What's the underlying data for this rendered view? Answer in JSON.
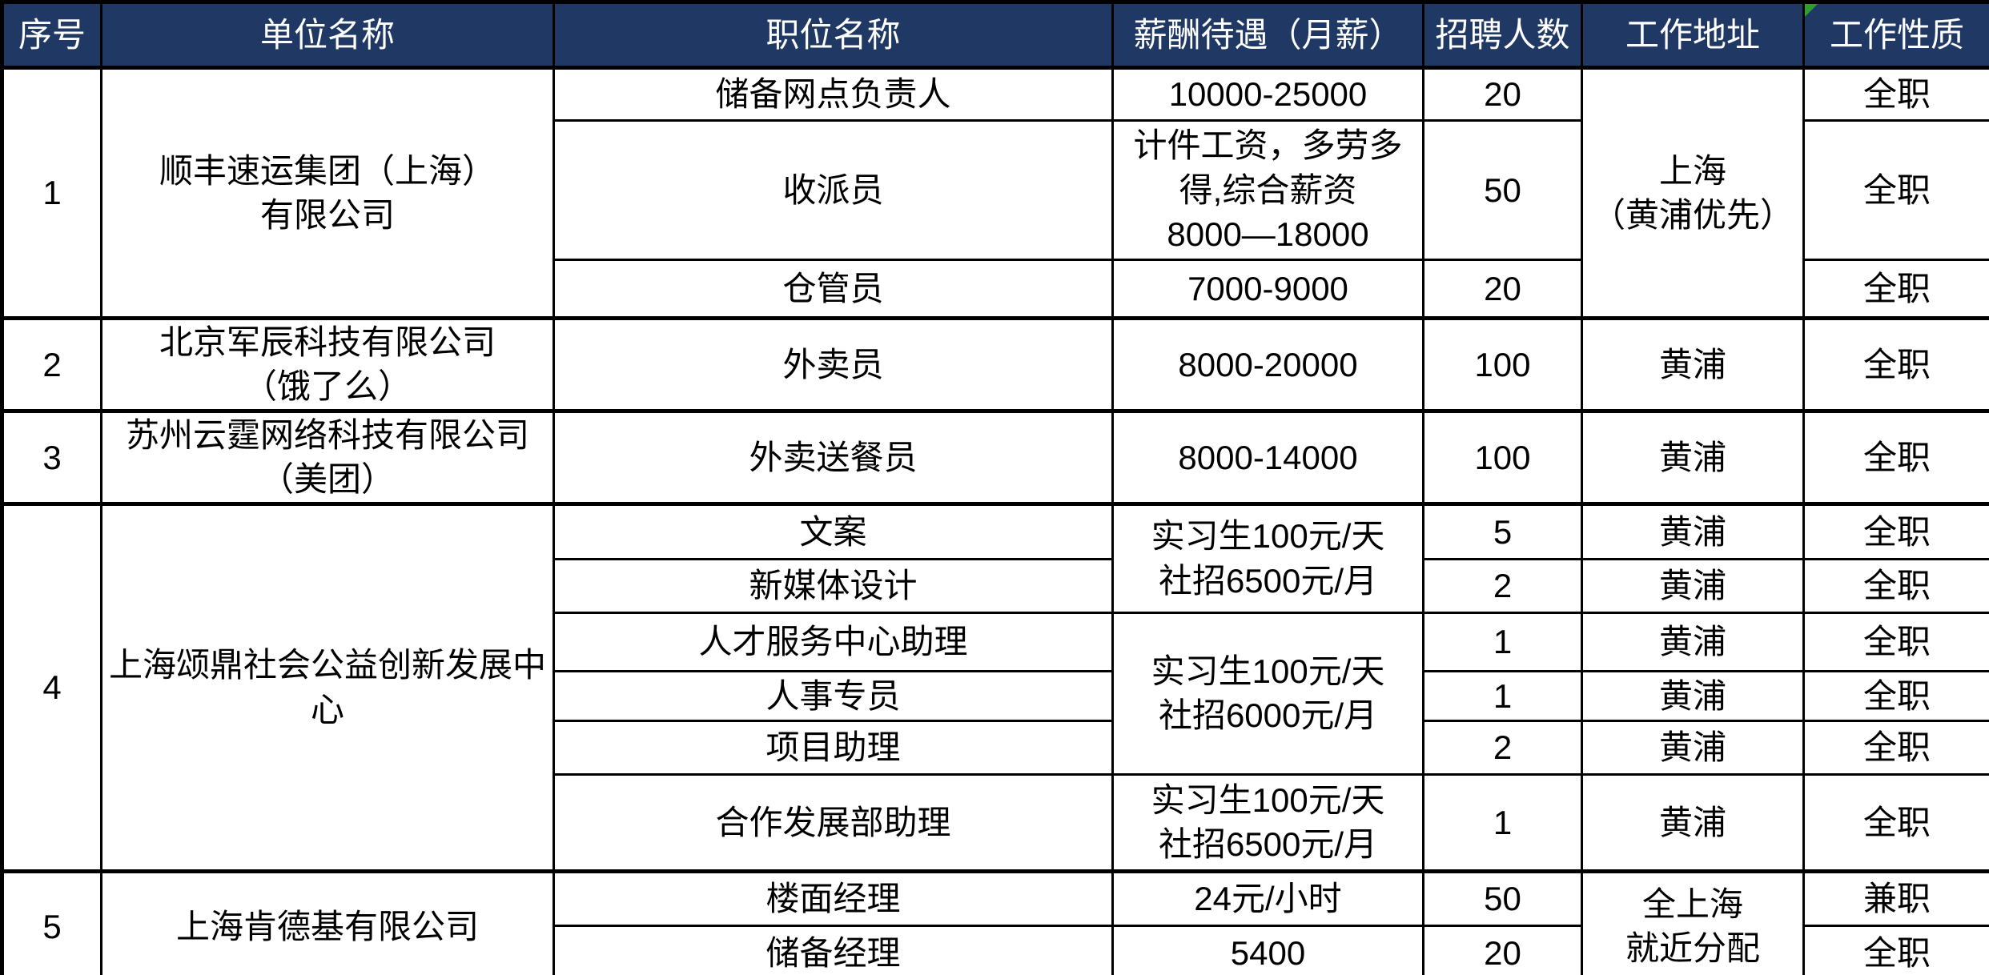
{
  "header": {
    "bg_color": "#1F3864",
    "text_color": "#FFFFFF",
    "flag_color": "#2E9E2E",
    "labels": [
      "序号",
      "单位名称",
      "职位名称",
      "薪酬待遇（月薪）",
      "招聘人数",
      "工作地址",
      "工作性质"
    ]
  },
  "rows": [
    {
      "seq": "1",
      "company": "顺丰速运集团（上海）\n有限公司",
      "position": "储备网点负责人",
      "salary": "10000-25000",
      "count": "20",
      "location": "上海\n（黄浦优先）",
      "type": "全职"
    },
    {
      "position": "收派员",
      "salary": "计件工资，多劳多\n得,综合薪资\n8000—18000",
      "count": "50",
      "type": "全职"
    },
    {
      "position": "仓管员",
      "salary": "7000-9000",
      "count": "20",
      "type": "全职"
    },
    {
      "seq": "2",
      "company": "北京军辰科技有限公司\n（饿了么）",
      "position": "外卖员",
      "salary": "8000-20000",
      "count": "100",
      "location": "黄浦",
      "type": "全职"
    },
    {
      "seq": "3",
      "company": "苏州云霆网络科技有限公司\n（美团）",
      "position": "外卖送餐员",
      "salary": "8000-14000",
      "count": "100",
      "location": "黄浦",
      "type": "全职"
    },
    {
      "seq": "4",
      "company": "上海颂鼎社会公益创新发展中\n心",
      "position": "文案",
      "salary": "实习生100元/天\n社招6500元/月",
      "count": "5",
      "location": "黄浦",
      "type": "全职"
    },
    {
      "position": "新媒体设计",
      "count": "2",
      "location": "黄浦",
      "type": "全职"
    },
    {
      "position": "人才服务中心助理",
      "salary": "实习生100元/天\n社招6000元/月",
      "count": "1",
      "location": "黄浦",
      "type": "全职"
    },
    {
      "position": "人事专员",
      "count": "1",
      "location": "黄浦",
      "type": "全职"
    },
    {
      "position": "项目助理",
      "count": "2",
      "location": "黄浦",
      "type": "全职"
    },
    {
      "position": "合作发展部助理",
      "salary": "实习生100元/天\n社招6500元/月",
      "count": "1",
      "location": "黄浦",
      "type": "全职"
    },
    {
      "seq": "5",
      "company": "上海肯德基有限公司",
      "position": "楼面经理",
      "salary": "24元/小时",
      "count": "50",
      "location": "全上海\n就近分配",
      "type": "兼职"
    },
    {
      "position": "储备经理",
      "salary": "5400",
      "count": "20",
      "type": "全职"
    }
  ]
}
